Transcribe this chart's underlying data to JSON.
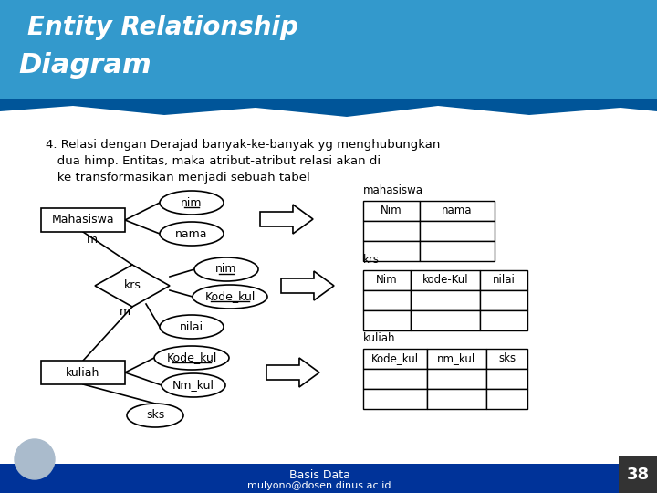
{
  "title_line1": "Entity Relationship",
  "title_line2": "Diagram",
  "header_bg_color": "#3399CC",
  "header_text_color": "white",
  "body_bg_color": "white",
  "description_lines": [
    "4. Relasi dengan Derajad banyak-ke-banyak yg menghubungkan",
    "   dua himp. Entitas, maka atribut-atribut relasi akan di",
    "   ke transformasikan menjadi sebuah tabel"
  ],
  "footer_text1": "Basis Data",
  "footer_text2": "mulyono@dosen.dinus.ac.id",
  "page_number": "38",
  "footer_bg": "#003399",
  "page_num_bg": "#333333"
}
